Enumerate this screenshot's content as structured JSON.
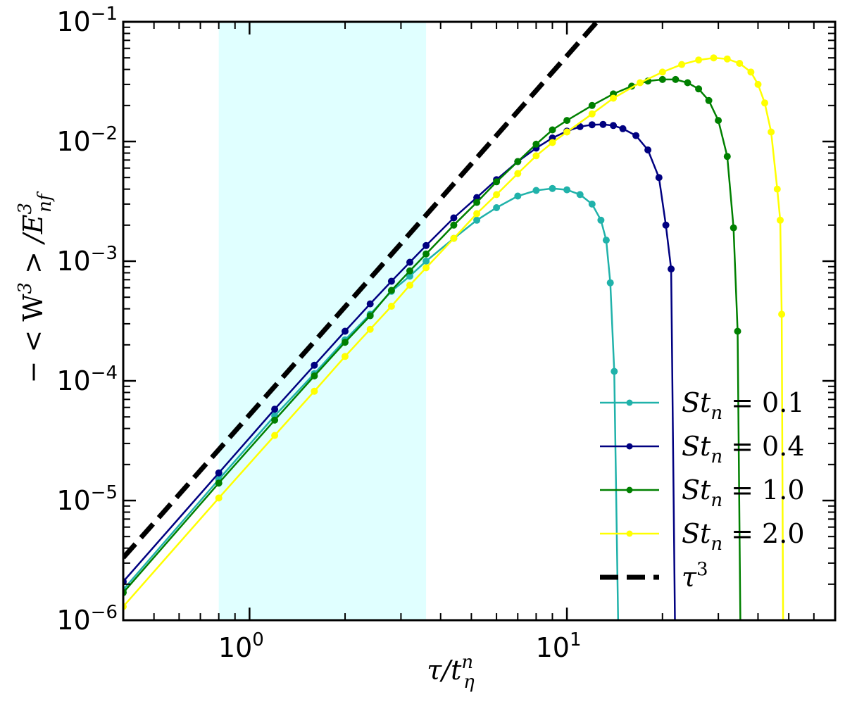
{
  "chart_data": {
    "type": "line",
    "x_scale": "log",
    "y_scale": "log",
    "xlim": [
      0.4,
      70
    ],
    "ylim": [
      1e-06,
      0.1
    ],
    "xlabel": {
      "main": "τ/t",
      "sup": "n",
      "sub": "η"
    },
    "ylabel": {
      "main": "− < W",
      "sup1": "3",
      "mid": " > /E",
      "sup2": "3",
      "sub2": "nf"
    },
    "x_ticks": [
      {
        "value": 1,
        "base": "10",
        "exp": "0"
      },
      {
        "value": 10,
        "base": "10",
        "exp": "1"
      }
    ],
    "y_ticks": [
      {
        "value": 1e-06,
        "base": "10",
        "exp": "−6"
      },
      {
        "value": 1e-05,
        "base": "10",
        "exp": "−5"
      },
      {
        "value": 0.0001,
        "base": "10",
        "exp": "−4"
      },
      {
        "value": 0.001,
        "base": "10",
        "exp": "−3"
      },
      {
        "value": 0.01,
        "base": "10",
        "exp": "−2"
      },
      {
        "value": 0.1,
        "base": "10",
        "exp": "−1"
      }
    ],
    "shaded_region": {
      "x_start": 0.8,
      "x_end": 3.6,
      "color": "#e0ffff"
    },
    "reference_line": {
      "name": "τ",
      "sup": "3",
      "coefficient": 5.2e-05,
      "power": 3,
      "color": "#000000"
    },
    "legend_position": "lower-right",
    "series": [
      {
        "name": "St",
        "sub": "n",
        "value_text": " = 0.1",
        "color": "#20b2aa",
        "x": [
          0.4,
          0.8,
          1.2,
          1.6,
          2.0,
          2.4,
          2.8,
          3.2,
          3.6,
          4.4,
          5.2,
          6.0,
          7.0,
          8.0,
          9.0,
          10.0,
          11.0,
          12.0,
          12.8,
          13.3,
          13.7,
          14.1,
          14.5
        ],
        "y": [
          1.8e-06,
          1.5e-05,
          5.1e-05,
          0.000115,
          0.00022,
          0.00036,
          0.00056,
          0.00075,
          0.001,
          0.00155,
          0.0022,
          0.0028,
          0.0035,
          0.0039,
          0.00405,
          0.00395,
          0.0036,
          0.003,
          0.0022,
          0.0015,
          0.00066,
          0.00012,
          1e-06
        ]
      },
      {
        "name": "St",
        "sub": "n",
        "value_text": " = 0.4",
        "color": "#000080",
        "x": [
          0.4,
          0.8,
          1.2,
          1.6,
          2.0,
          2.4,
          2.8,
          3.2,
          3.6,
          4.4,
          5.2,
          6.0,
          7.0,
          8.0,
          9.0,
          10.0,
          11.0,
          12.0,
          13.0,
          14.0,
          15.0,
          16.5,
          18.0,
          19.5,
          20.5,
          21.3,
          21.9
        ],
        "y": [
          2.1e-06,
          1.7e-05,
          5.8e-05,
          0.000135,
          0.00026,
          0.00044,
          0.00068,
          0.00098,
          0.00135,
          0.0023,
          0.0034,
          0.0048,
          0.0068,
          0.0088,
          0.0107,
          0.0122,
          0.0133,
          0.0138,
          0.0139,
          0.0136,
          0.0128,
          0.0112,
          0.0085,
          0.005,
          0.002,
          0.00086,
          1e-06
        ]
      },
      {
        "name": "St",
        "sub": "n",
        "value_text": " = 1.0",
        "color": "#008000",
        "x": [
          0.4,
          0.8,
          1.2,
          1.6,
          2.0,
          2.4,
          2.8,
          3.2,
          3.6,
          4.4,
          5.2,
          6.0,
          7.0,
          8.0,
          9.0,
          10.0,
          12.0,
          14.0,
          16.0,
          18.0,
          20.0,
          22.0,
          24.0,
          26.0,
          28.0,
          30.0,
          32.0,
          33.5,
          34.5,
          35.2
        ],
        "y": [
          1.7e-06,
          1.4e-05,
          4.7e-05,
          0.00011,
          0.00021,
          0.00035,
          0.00057,
          0.00083,
          0.00115,
          0.002,
          0.0031,
          0.0046,
          0.0068,
          0.0095,
          0.0125,
          0.015,
          0.02,
          0.025,
          0.029,
          0.032,
          0.033,
          0.033,
          0.031,
          0.0275,
          0.022,
          0.015,
          0.0075,
          0.0019,
          0.00026,
          1e-06
        ]
      },
      {
        "name": "St",
        "sub": "n",
        "value_text": " = 2.0",
        "color": "#ffff00",
        "x": [
          0.4,
          0.8,
          1.2,
          1.6,
          2.0,
          2.4,
          2.8,
          3.2,
          3.6,
          4.4,
          5.2,
          6.0,
          7.0,
          8.0,
          9.0,
          10.0,
          12.0,
          14.0,
          17.0,
          20.0,
          23.0,
          26.0,
          29.0,
          32.0,
          35.0,
          38.0,
          40.0,
          42.0,
          44.0,
          46.0,
          47.0,
          47.5,
          48.0
        ],
        "y": [
          1.3e-06,
          1.05e-05,
          3.5e-05,
          8.2e-05,
          0.00016,
          0.00027,
          0.00042,
          0.00063,
          0.00088,
          0.00155,
          0.0025,
          0.0036,
          0.0054,
          0.0076,
          0.0098,
          0.012,
          0.017,
          0.023,
          0.031,
          0.038,
          0.044,
          0.048,
          0.05,
          0.049,
          0.045,
          0.038,
          0.03,
          0.021,
          0.012,
          0.004,
          0.0022,
          0.00036,
          1e-06
        ]
      }
    ]
  }
}
